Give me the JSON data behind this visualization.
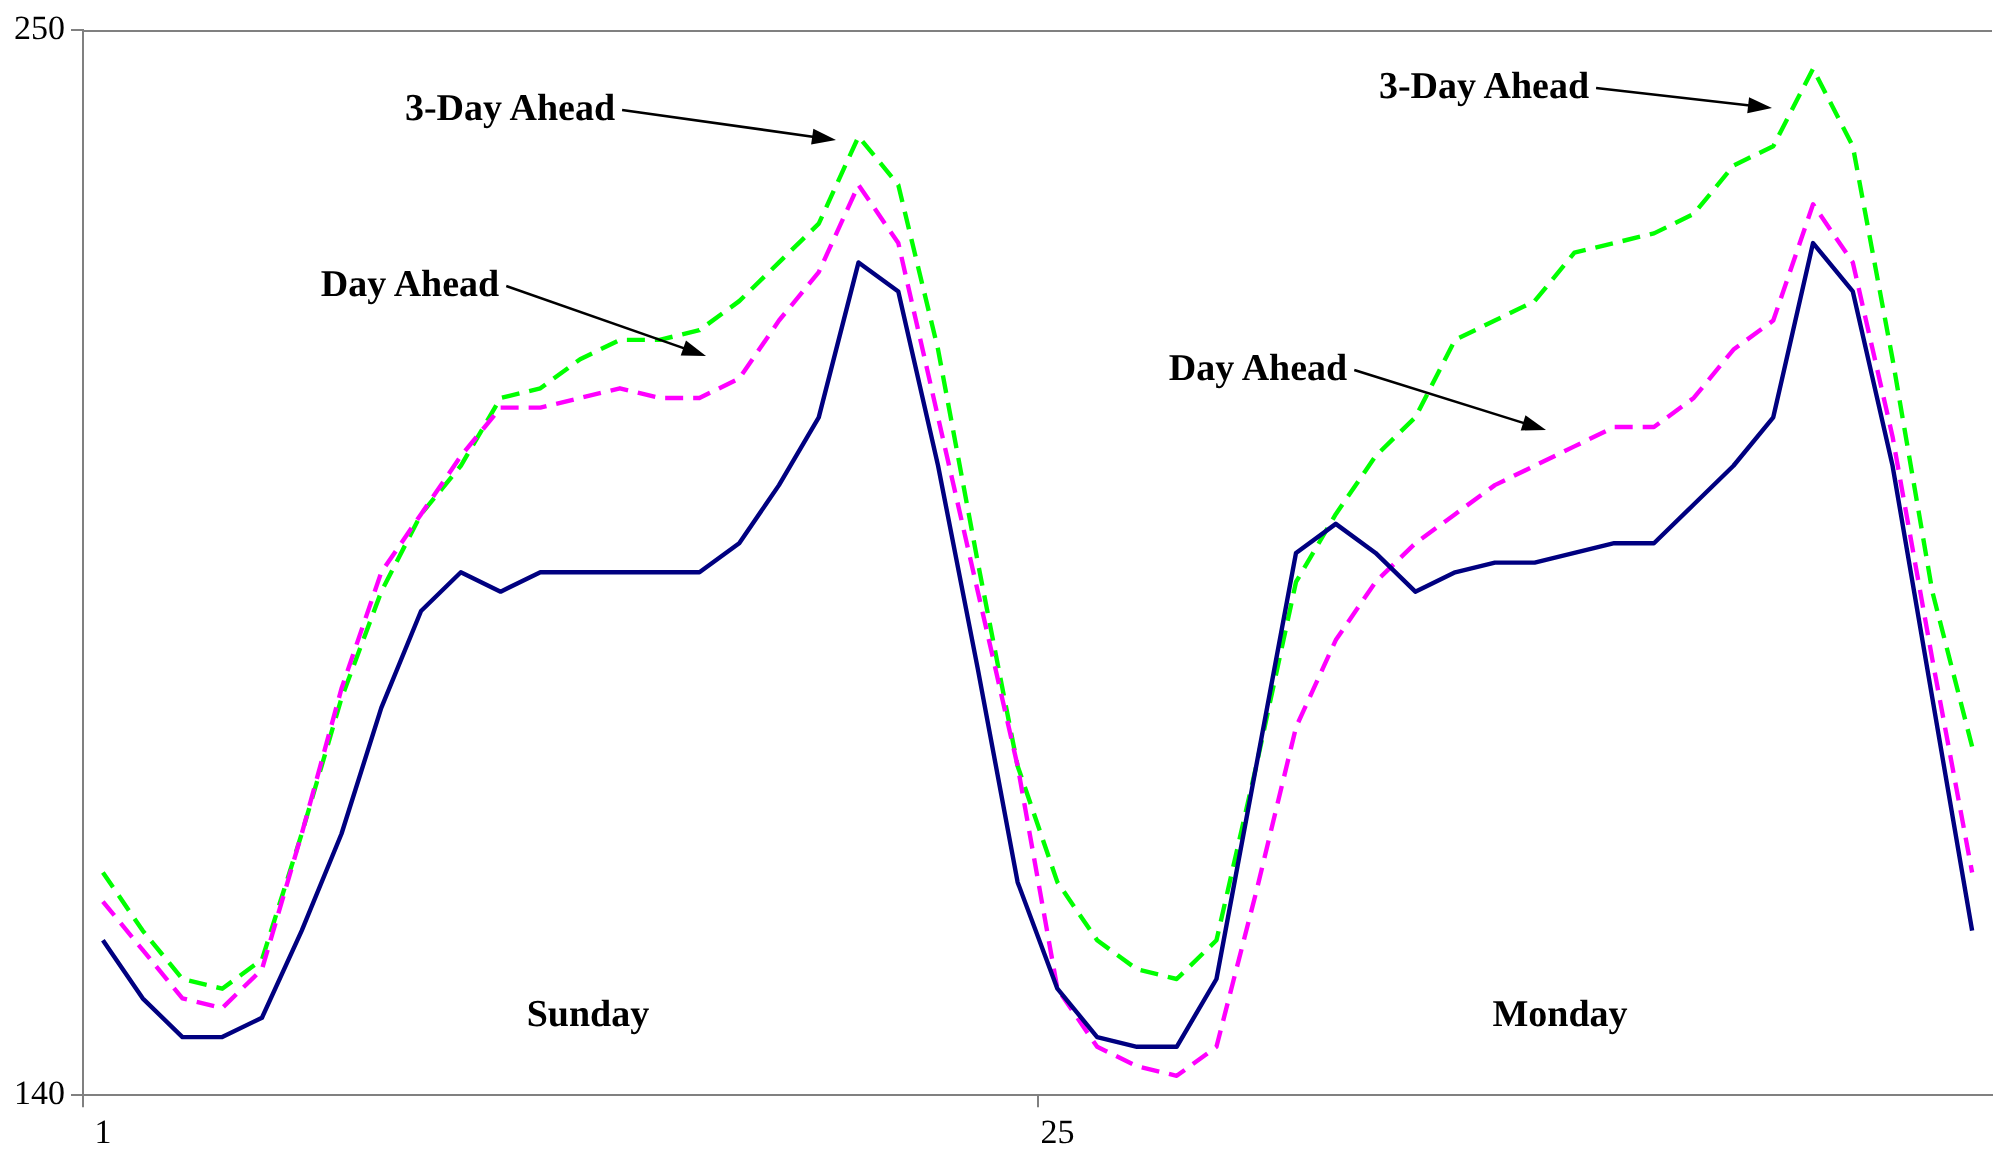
{
  "chart_data": {
    "type": "line",
    "categories": [
      "1",
      null,
      null,
      null,
      null,
      null,
      null,
      null,
      null,
      null,
      null,
      null,
      null,
      null,
      null,
      null,
      null,
      null,
      null,
      null,
      null,
      null,
      null,
      null,
      "25",
      null,
      null,
      null,
      null,
      null,
      null,
      null,
      null,
      null,
      null,
      null,
      null,
      null,
      null,
      null,
      null,
      null,
      null,
      null,
      null,
      null,
      null,
      null
    ],
    "series": [
      {
        "color": "#000080",
        "line_style": "solid",
        "values": [
          156,
          150,
          146,
          146,
          148,
          157,
          167,
          180,
          190,
          194,
          192,
          194,
          194,
          194,
          194,
          194,
          197,
          203,
          210,
          226,
          223,
          205,
          184,
          162,
          151,
          146,
          145,
          145,
          152,
          174,
          196,
          199,
          196,
          192,
          194,
          195,
          195,
          196,
          197,
          197,
          201,
          205,
          210,
          228,
          223,
          205,
          181,
          157
        ]
      },
      {
        "color": "#ff00ff",
        "line_style": "dashed",
        "values": [
          160,
          155,
          150,
          149,
          153,
          167,
          182,
          194,
          200,
          206,
          211,
          211,
          212,
          213,
          212,
          212,
          214,
          220,
          225,
          234,
          228,
          210,
          192,
          174,
          151,
          145,
          143,
          142,
          145,
          161,
          178,
          187,
          193,
          197,
          200,
          203,
          205,
          207,
          209,
          209,
          212,
          217,
          220,
          232,
          226,
          208,
          185,
          163
        ]
      },
      {
        "color": "#00ff00",
        "line_style": "dashed",
        "values": [
          163,
          157,
          152,
          151,
          154,
          167,
          181,
          192,
          200,
          205,
          212,
          213,
          216,
          218,
          218,
          219,
          222,
          226,
          230,
          239,
          234,
          217,
          195,
          174,
          162,
          156,
          153,
          152,
          156,
          174,
          193,
          200,
          206,
          210,
          218,
          220,
          222,
          227,
          228,
          229,
          231,
          236,
          238,
          246,
          238,
          216,
          192,
          176
        ]
      }
    ],
    "ylim": [
      140,
      250
    ],
    "yticks": [
      140,
      250
    ],
    "grid": false,
    "legend": false,
    "marker": "none",
    "annotations": [
      "3-Day Ahead",
      "Day Ahead",
      "3-Day Ahead",
      "Day Ahead",
      "Sunday",
      "Monday"
    ]
  }
}
